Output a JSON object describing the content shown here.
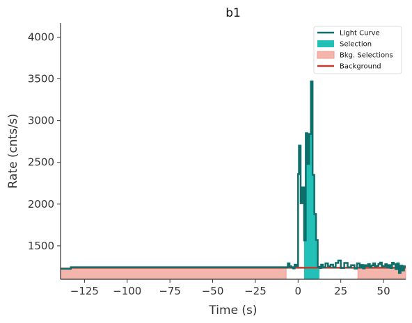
{
  "chart_data": {
    "type": "line",
    "title": "b1",
    "xlabel": "Time (s)",
    "ylabel": "Rate (cnts/s)",
    "xlim": [
      -139,
      63
    ],
    "ylim": [
      1100,
      4170
    ],
    "xticks": [
      -125,
      -100,
      -75,
      -50,
      -25,
      0,
      25,
      50
    ],
    "xtick_labels": [
      "−125",
      "−100",
      "−75",
      "−50",
      "−25",
      "0",
      "25",
      "50"
    ],
    "yticks": [
      1500,
      2000,
      2500,
      3000,
      3500,
      4000
    ],
    "ytick_labels": [
      "1500",
      "2000",
      "2500",
      "3000",
      "3500",
      "4000"
    ],
    "grid": false,
    "legend_position": "top-right",
    "legend": [
      {
        "key": "light_curve",
        "label": "Light Curve"
      },
      {
        "key": "selection",
        "label": "Selection"
      },
      {
        "key": "bkg_selections",
        "label": "Bkg. Selections"
      },
      {
        "key": "background",
        "label": "Background"
      }
    ],
    "colors": {
      "light_curve": "#0e6e6a",
      "selection": "#22c0b6",
      "bkg_selections": "#f4b5ad",
      "bkg_edge": "#ee9a90",
      "background": "#c0392b",
      "axis": "#333333"
    },
    "selection_range": [
      3.5,
      12.5
    ],
    "bkg_selection_ranges": [
      [
        -139,
        -7
      ],
      [
        35,
        63
      ]
    ],
    "background_level": 1238,
    "light_curve": {
      "x": [
        -139,
        -133,
        -7,
        -6,
        -5,
        -4,
        -3,
        -2,
        -1,
        0,
        0.5,
        1.5,
        2.5,
        3.5,
        4.5,
        5.5,
        6.5,
        7.5,
        8.5,
        9.5,
        10.5,
        11.5,
        12.5,
        13.5,
        14.5,
        16,
        17.5,
        19,
        20.5,
        22,
        23.5,
        25,
        27,
        29,
        31,
        33,
        34.5,
        36,
        37,
        38,
        39,
        40,
        41,
        42,
        43,
        44,
        45,
        46,
        47,
        48,
        49,
        50,
        51,
        52,
        53,
        54,
        55,
        56,
        57,
        58,
        59,
        60,
        61,
        62,
        63
      ],
      "y": [
        1225,
        1245,
        1240,
        1290,
        1255,
        1245,
        1230,
        1275,
        1258,
        2360,
        2700,
        2010,
        2200,
        1565,
        2850,
        2480,
        2840,
        3470,
        2350,
        1880,
        1570,
        1250,
        1235,
        1275,
        1245,
        1290,
        1255,
        1275,
        1245,
        1295,
        1325,
        1235,
        1295,
        1245,
        1268,
        1228,
        1290,
        1240,
        1272,
        1230,
        1268,
        1260,
        1282,
        1248,
        1265,
        1290,
        1255,
        1260,
        1282,
        1300,
        1252,
        1258,
        1280,
        1240,
        1270,
        1235,
        1298,
        1280,
        1222,
        1290,
        1175,
        1262,
        1205,
        1255,
        1255
      ]
    }
  }
}
